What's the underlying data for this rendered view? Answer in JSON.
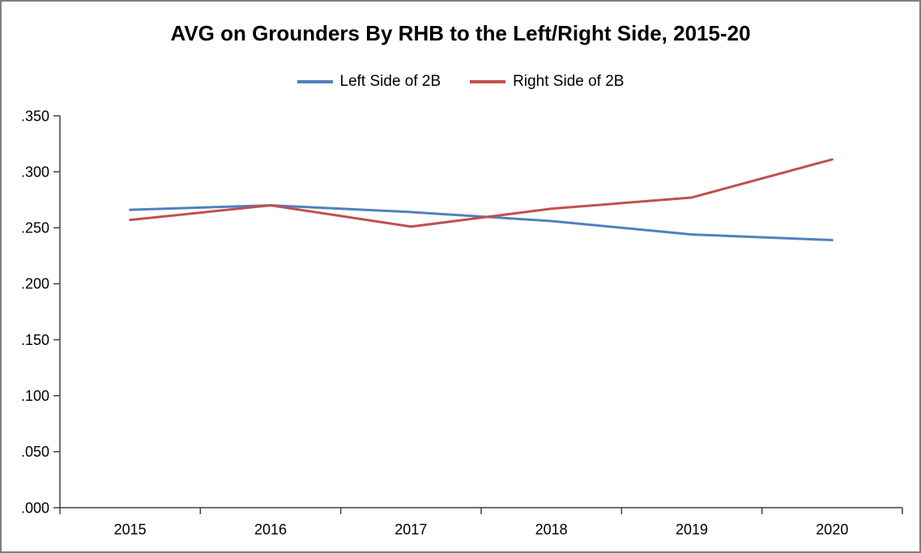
{
  "chart_data": {
    "type": "line",
    "title": "AVG on Grounders By RHB to the Left/Right Side, 2015-20",
    "categories": [
      "2015",
      "2016",
      "2017",
      "2018",
      "2019",
      "2020"
    ],
    "series": [
      {
        "name": "Left Side of 2B",
        "color": "#4F81BD",
        "values": [
          0.266,
          0.27,
          0.264,
          0.256,
          0.244,
          0.239
        ]
      },
      {
        "name": "Right Side of 2B",
        "color": "#C0504D",
        "values": [
          0.257,
          0.27,
          0.251,
          0.267,
          0.277,
          0.311
        ]
      }
    ],
    "ylim": [
      0,
      0.35
    ],
    "ytick_step": 0.05,
    "ytick_labels": [
      ".000",
      ".050",
      ".100",
      ".150",
      ".200",
      ".250",
      ".300",
      ".350"
    ],
    "grid": false,
    "legend_position": "top",
    "axis_color": "#404040",
    "line_width": 3
  }
}
